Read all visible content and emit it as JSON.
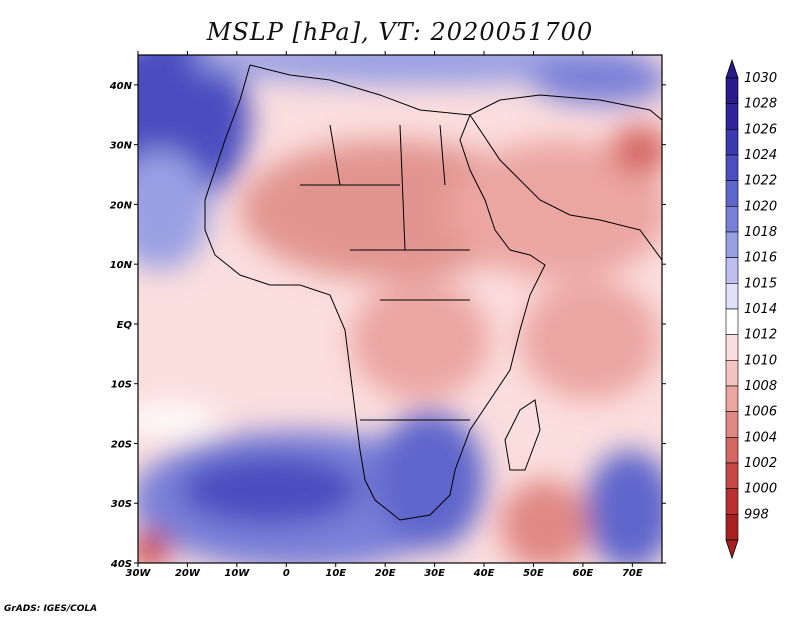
{
  "title": "MSLP [hPa], VT: 2020051700",
  "credit": "GrADS: IGES/COLA",
  "map": {
    "lon_range": [
      -30,
      76
    ],
    "lat_range": [
      -40,
      45
    ],
    "lon_ticks": [
      "30W",
      "20W",
      "10W",
      "0",
      "10E",
      "20E",
      "30E",
      "40E",
      "50E",
      "60E",
      "70E"
    ],
    "lon_tick_values": [
      -30,
      -20,
      -10,
      0,
      10,
      20,
      30,
      40,
      50,
      60,
      70
    ],
    "lat_ticks": [
      "40N",
      "30N",
      "20N",
      "10N",
      "EQ",
      "10S",
      "20S",
      "30S",
      "40S"
    ],
    "lat_tick_values": [
      40,
      30,
      20,
      10,
      0,
      -10,
      -20,
      -30,
      -40
    ]
  },
  "colorbar": {
    "labels": [
      "1030",
      "1028",
      "1026",
      "1024",
      "1022",
      "1020",
      "1018",
      "1016",
      "1015",
      "1014",
      "1012",
      "1010",
      "1008",
      "1006",
      "1004",
      "1002",
      "1000",
      "998"
    ],
    "colors": [
      "#2a1a8a",
      "#30269c",
      "#3a3aae",
      "#4a4ec0",
      "#5f66cc",
      "#7a80d8",
      "#9aa0e4",
      "#bcbff0",
      "#e0e0fa",
      "#ffffff",
      "#fbdede",
      "#f4c4c2",
      "#eca6a2",
      "#e08884",
      "#d66864",
      "#c84846",
      "#b83030",
      "#a82020"
    ]
  },
  "colors": {
    "ocean_high": "#4a4ec0",
    "land_low": "#e29590",
    "neutral": "#ffffff",
    "coast": "#000000"
  }
}
